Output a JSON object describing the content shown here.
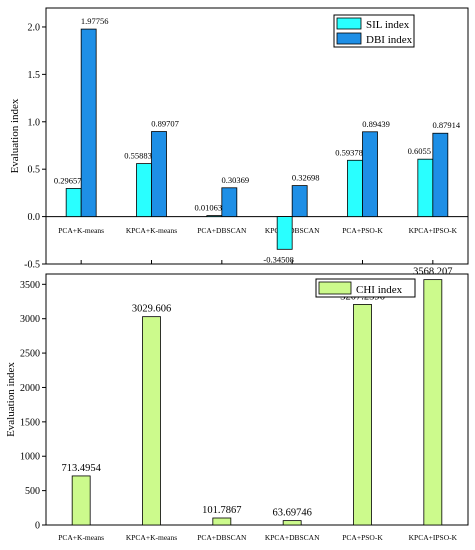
{
  "chart_data": [
    {
      "type": "bar",
      "ylabel": "Evaluation index",
      "ylim": [
        -0.5,
        2.2
      ],
      "yticks": [
        "-0.5",
        "0.0",
        "0.5",
        "1.0",
        "1.5",
        "2.0"
      ],
      "legend_position": "top-right",
      "categories": [
        "PCA+K-means",
        "KPCA+K-means",
        "PCA+DBSCAN",
        "KPCA+DBSCAN",
        "PCA+PSO-K",
        "KPCA+IPSO-K"
      ],
      "series": [
        {
          "name": "SIL index",
          "color": "#29ffff",
          "values": [
            0.29657,
            0.55883,
            0.01063,
            -0.34508,
            0.59378,
            0.6055
          ],
          "labels": [
            "0.29657",
            "0.55883",
            "0.01063",
            "-0.34508",
            "0.59378",
            "0.6055"
          ]
        },
        {
          "name": "DBI index",
          "color": "#1e8fe6",
          "values": [
            1.97756,
            0.89707,
            0.30369,
            0.32698,
            0.89439,
            0.87914
          ],
          "labels": [
            "1.97756",
            "0.89707",
            "0.30369",
            "0.32698",
            "0.89439",
            "0.87914"
          ]
        }
      ]
    },
    {
      "type": "bar",
      "ylabel": "Evaluation index",
      "ylim": [
        0,
        3650
      ],
      "yticks": [
        "0",
        "500",
        "1000",
        "1500",
        "2000",
        "2500",
        "3000",
        "3500"
      ],
      "legend_position": "top-right",
      "categories": [
        "PCA+K-means",
        "KPCA+K-means",
        "PCA+DBSCAN",
        "KPCA+DBSCAN",
        "PCA+PSO-K",
        "KPCA+IPSO-K"
      ],
      "series": [
        {
          "name": "CHI index",
          "color": "#ccfa8c",
          "values": [
            713.4954,
            3029.606,
            101.7867,
            63.69746,
            3207.2596,
            3568.207
          ],
          "labels": [
            "713.4954",
            "3029.606",
            "101.7867",
            "63.69746",
            "3207.2596",
            "3568.207"
          ]
        }
      ]
    }
  ]
}
